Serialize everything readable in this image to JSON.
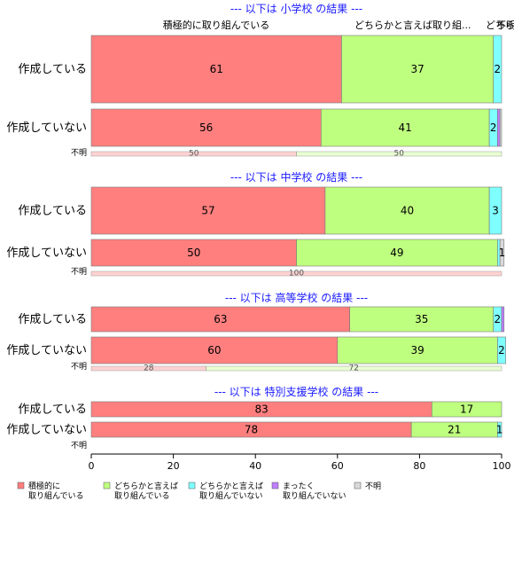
{
  "chart_data": {
    "type": "bar",
    "orientation": "horizontal",
    "stacked": true,
    "xlim": [
      0,
      100
    ],
    "xticks": [
      "0",
      "20",
      "40",
      "60",
      "80",
      "100"
    ],
    "colors": [
      "#ff7f7f",
      "#bfff7f",
      "#7fffff",
      "#bf7fff",
      "#d9d9d9"
    ],
    "top_labels": [
      {
        "text": "積極的に取り組んでいる"
      },
      {
        "text": "どちらかと言えば取り組..."
      },
      {
        "text": "どちら..."
      },
      {
        "text": "不明"
      }
    ],
    "legend": [
      {
        "lines": [
          "積極的に",
          "取り組んでいる"
        ],
        "color": "#ff7f7f"
      },
      {
        "lines": [
          "どちらかと言えば",
          "取り組んでいる"
        ],
        "color": "#bfff7f"
      },
      {
        "lines": [
          "どちらかと言えば",
          "取り組んでいない"
        ],
        "color": "#7fffff"
      },
      {
        "lines": [
          "まったく",
          "取り組んでいない"
        ],
        "color": "#bf7fff"
      },
      {
        "lines": [
          "不明"
        ],
        "color": "#d9d9d9"
      }
    ],
    "sections": [
      {
        "title": "--- 以下は 小学校 の結果 ---",
        "unknown_label": "不明",
        "rows": [
          {
            "label": "作成している",
            "values": [
              61,
              37,
              2,
              0,
              0
            ]
          },
          {
            "label": "作成していない",
            "values": [
              56,
              41,
              2,
              0.6,
              0.4
            ]
          }
        ],
        "unknown_values": [
          50,
          50
        ]
      },
      {
        "title": "--- 以下は 中学校 の結果 ---",
        "unknown_label": "不明",
        "rows": [
          {
            "label": "作成している",
            "values": [
              57,
              40,
              3,
              0,
              0
            ]
          },
          {
            "label": "作成していない",
            "values": [
              50,
              49,
              0.6,
              0,
              1
            ]
          }
        ],
        "unknown_values": [
          100
        ]
      },
      {
        "title": "--- 以下は 高等学校 の結果 ---",
        "unknown_label": "不明",
        "rows": [
          {
            "label": "作成している",
            "values": [
              63,
              35,
              2,
              0.6,
              0
            ]
          },
          {
            "label": "作成していない",
            "values": [
              60,
              39,
              2,
              0,
              0
            ]
          }
        ],
        "unknown_values": [
          28,
          72
        ]
      },
      {
        "title": "--- 以下は 特別支援学校 の結果 ---",
        "unknown_label": "不明",
        "rows": [
          {
            "label": "作成している",
            "values": [
              83,
              17,
              0,
              0,
              0
            ]
          },
          {
            "label": "作成していない",
            "values": [
              78,
              21,
              1,
              0,
              0
            ]
          }
        ],
        "unknown_values": []
      }
    ]
  }
}
